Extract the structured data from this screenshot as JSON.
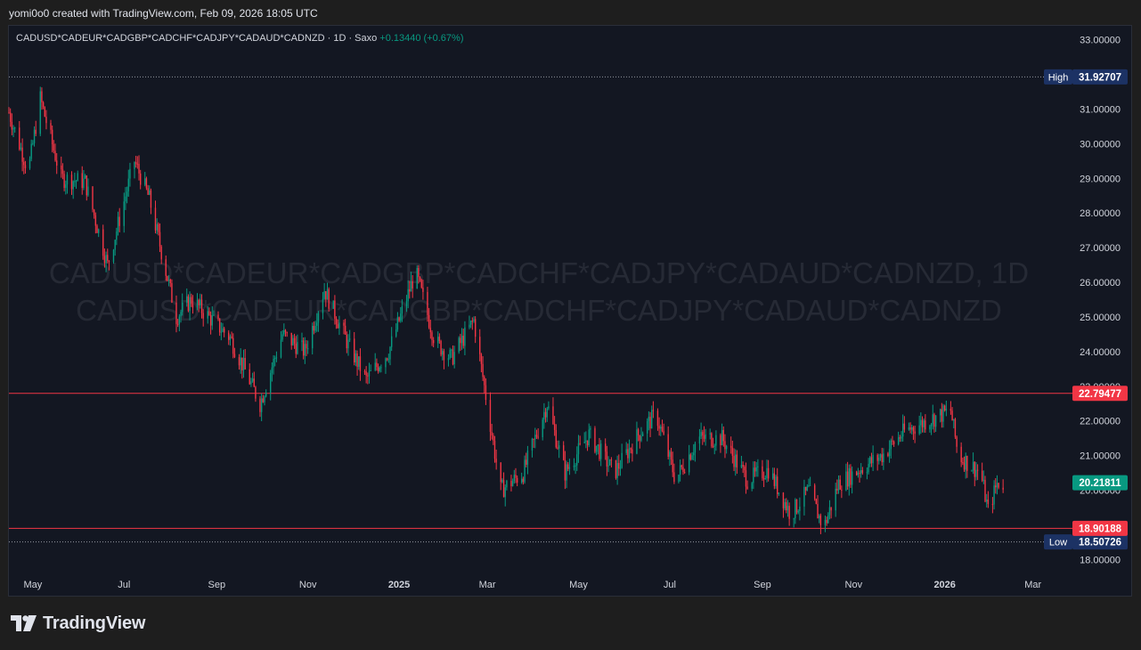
{
  "header": {
    "credit": "yomi0o0 created with TradingView.com, Feb 09, 2026 18:05 UTC"
  },
  "brand": {
    "logo_text": "TradingView"
  },
  "chart_data": {
    "type": "candlestick",
    "symbol": "CADUSD*CADEUR*CADGBP*CADCHF*CADJPY*CADAUD*CADNZD",
    "interval": "1D",
    "source": "Saxo",
    "change_text": "+0.13440 (+0.67%)",
    "watermark": [
      "CADUSD*CADEUR*CADGBP*CADCHF*CADJPY*CADAUD*CADNZD, 1D",
      "CADUSD*CADEUR*CADGBP*CADCHF*CADJPY*CADAUD*CADNZD"
    ],
    "ylim": [
      17.6,
      33.4
    ],
    "y_ticks": [
      "18.00000",
      "19.00000",
      "20.00000",
      "21.00000",
      "22.00000",
      "23.00000",
      "24.00000",
      "25.00000",
      "26.00000",
      "27.00000",
      "28.00000",
      "29.00000",
      "30.00000",
      "31.00000",
      "32.00000",
      "33.00000"
    ],
    "x_range": [
      "2024-04-15",
      "2026-03-25"
    ],
    "x_ticks": [
      {
        "date": "2024-05-01",
        "label": "May",
        "bold": false
      },
      {
        "date": "2024-07-01",
        "label": "Jul",
        "bold": false
      },
      {
        "date": "2024-09-01",
        "label": "Sep",
        "bold": false
      },
      {
        "date": "2024-11-01",
        "label": "Nov",
        "bold": false
      },
      {
        "date": "2025-01-01",
        "label": "2025",
        "bold": true
      },
      {
        "date": "2025-03-01",
        "label": "Mar",
        "bold": false
      },
      {
        "date": "2025-05-01",
        "label": "May",
        "bold": false
      },
      {
        "date": "2025-07-01",
        "label": "Jul",
        "bold": false
      },
      {
        "date": "2025-09-01",
        "label": "Sep",
        "bold": false
      },
      {
        "date": "2025-11-01",
        "label": "Nov",
        "bold": false
      },
      {
        "date": "2026-01-01",
        "label": "2026",
        "bold": true
      },
      {
        "date": "2026-03-01",
        "label": "Mar",
        "bold": false
      }
    ],
    "price_path": [
      {
        "date": "2024-04-15",
        "value": 30.9
      },
      {
        "date": "2024-04-28",
        "value": 29.2
      },
      {
        "date": "2024-05-06",
        "value": 31.3
      },
      {
        "date": "2024-05-20",
        "value": 29.0
      },
      {
        "date": "2024-06-05",
        "value": 28.9
      },
      {
        "date": "2024-06-20",
        "value": 26.5
      },
      {
        "date": "2024-07-08",
        "value": 29.5
      },
      {
        "date": "2024-07-18",
        "value": 28.4
      },
      {
        "date": "2024-08-05",
        "value": 25.0
      },
      {
        "date": "2024-08-15",
        "value": 25.5
      },
      {
        "date": "2024-09-10",
        "value": 24.4
      },
      {
        "date": "2024-09-30",
        "value": 22.5
      },
      {
        "date": "2024-10-15",
        "value": 24.5
      },
      {
        "date": "2024-10-30",
        "value": 24.0
      },
      {
        "date": "2024-11-12",
        "value": 25.8
      },
      {
        "date": "2024-11-28",
        "value": 24.2
      },
      {
        "date": "2024-12-10",
        "value": 23.2
      },
      {
        "date": "2024-12-25",
        "value": 24.0
      },
      {
        "date": "2025-01-12",
        "value": 26.3
      },
      {
        "date": "2025-01-25",
        "value": 24.3
      },
      {
        "date": "2025-02-05",
        "value": 23.8
      },
      {
        "date": "2025-02-20",
        "value": 24.9
      },
      {
        "date": "2025-03-10",
        "value": 20.0
      },
      {
        "date": "2025-03-25",
        "value": 20.5
      },
      {
        "date": "2025-04-10",
        "value": 22.5
      },
      {
        "date": "2025-04-22",
        "value": 20.5
      },
      {
        "date": "2025-05-08",
        "value": 21.6
      },
      {
        "date": "2025-05-25",
        "value": 20.5
      },
      {
        "date": "2025-06-10",
        "value": 21.6
      },
      {
        "date": "2025-06-22",
        "value": 22.2
      },
      {
        "date": "2025-07-05",
        "value": 20.3
      },
      {
        "date": "2025-07-20",
        "value": 21.5
      },
      {
        "date": "2025-08-05",
        "value": 21.5
      },
      {
        "date": "2025-08-22",
        "value": 20.3
      },
      {
        "date": "2025-09-05",
        "value": 20.6
      },
      {
        "date": "2025-09-20",
        "value": 19.3
      },
      {
        "date": "2025-10-02",
        "value": 20.0
      },
      {
        "date": "2025-10-12",
        "value": 18.9
      },
      {
        "date": "2025-10-22",
        "value": 20.2
      },
      {
        "date": "2025-11-05",
        "value": 20.6
      },
      {
        "date": "2025-11-20",
        "value": 21.0
      },
      {
        "date": "2025-12-05",
        "value": 21.7
      },
      {
        "date": "2025-12-20",
        "value": 22.0
      },
      {
        "date": "2026-01-05",
        "value": 22.3
      },
      {
        "date": "2026-01-10",
        "value": 21.0
      },
      {
        "date": "2026-01-25",
        "value": 20.5
      },
      {
        "date": "2026-01-30",
        "value": 19.4
      },
      {
        "date": "2026-02-05",
        "value": 20.2
      },
      {
        "date": "2026-02-09",
        "value": 20.2
      }
    ],
    "high": {
      "label": "High",
      "value": "31.92707"
    },
    "low": {
      "label": "Low",
      "value": "18.50726"
    },
    "levels": [
      {
        "value": "22.79477",
        "color": "#f23645"
      },
      {
        "value": "18.90188",
        "color": "#f23645"
      }
    ],
    "last_price": {
      "value": "20.21811",
      "color": "#089981"
    },
    "colors": {
      "up": "#089981",
      "down": "#f23645",
      "background": "#131722",
      "text": "#d1d4dc",
      "badge_dark": "#1c3264"
    }
  }
}
